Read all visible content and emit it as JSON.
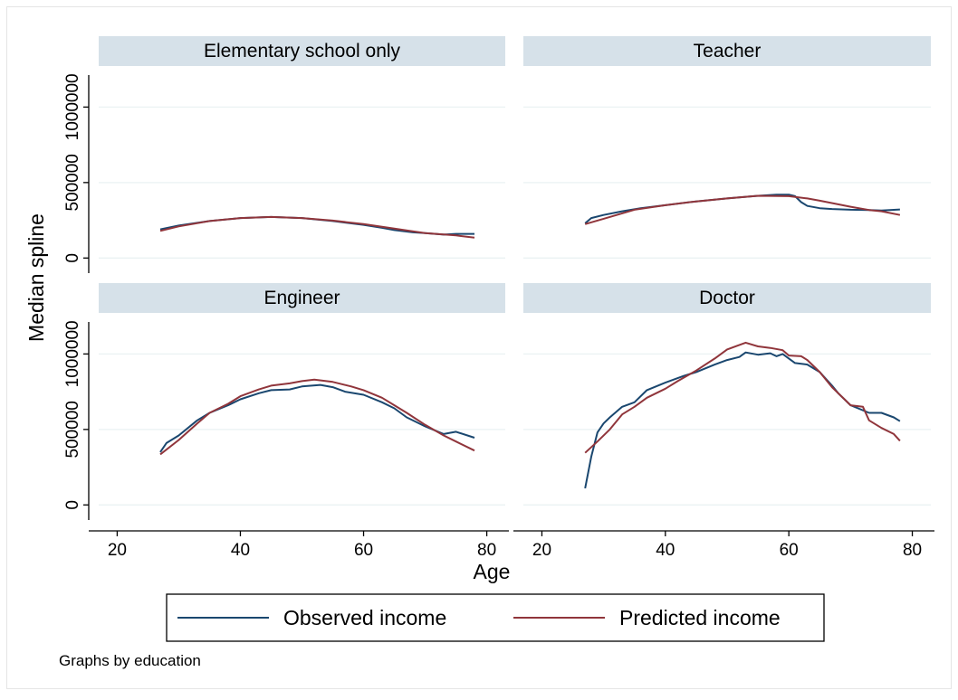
{
  "chart_data": {
    "type": "line",
    "xlabel": "Age",
    "ylabel": "Median spline",
    "note": "Graphs by education",
    "xlim": [
      17,
      83
    ],
    "ylim": [
      -100000,
      1200000
    ],
    "xticks": [
      20,
      40,
      60,
      80
    ],
    "yticks": [
      0,
      500000,
      1000000
    ],
    "grid": true,
    "legend_position": "bottom",
    "colors": {
      "observed": "#1a476f",
      "predicted": "#90353b",
      "panel_header_bg": "#d6e1e9",
      "grid": "#eaf2f3",
      "axis": "#000000",
      "frame_border": "#e5e5e5"
    },
    "legend": [
      {
        "key": "observed",
        "label": "Observed income"
      },
      {
        "key": "predicted",
        "label": "Predicted income"
      }
    ],
    "panels": [
      {
        "title": "Elementary school only",
        "series": [
          {
            "name": "Observed income",
            "key": "observed",
            "x": [
              27,
              30,
              35,
              40,
              45,
              50,
              55,
              60,
              63,
              65,
              68,
              70,
              73,
              75,
              78
            ],
            "y": [
              190000,
              215000,
              245000,
              265000,
              272000,
              265000,
              245000,
              220000,
              200000,
              185000,
              170000,
              165000,
              155000,
              160000,
              160000
            ]
          },
          {
            "name": "Predicted income",
            "key": "predicted",
            "x": [
              27,
              30,
              35,
              40,
              45,
              50,
              55,
              60,
              65,
              70,
              75,
              78
            ],
            "y": [
              180000,
              210000,
              245000,
              265000,
              272000,
              265000,
              248000,
              225000,
              195000,
              165000,
              150000,
              135000
            ]
          }
        ]
      },
      {
        "title": "Teacher",
        "series": [
          {
            "name": "Observed income",
            "key": "observed",
            "x": [
              27,
              28,
              30,
              33,
              36,
              40,
              45,
              50,
              55,
              58,
              60,
              61,
              62,
              63,
              65,
              67,
              70,
              73,
              75,
              78
            ],
            "y": [
              230000,
              265000,
              285000,
              310000,
              330000,
              350000,
              375000,
              395000,
              412000,
              420000,
              420000,
              410000,
              370000,
              345000,
              330000,
              325000,
              320000,
              318000,
              315000,
              322000
            ]
          },
          {
            "name": "Predicted income",
            "key": "predicted",
            "x": [
              27,
              30,
              35,
              40,
              45,
              50,
              55,
              60,
              63,
              65,
              70,
              73,
              75,
              78
            ],
            "y": [
              225000,
              260000,
              320000,
              350000,
              375000,
              395000,
              412000,
              410000,
              395000,
              380000,
              340000,
              318000,
              310000,
              285000
            ]
          }
        ]
      },
      {
        "title": "Engineer",
        "series": [
          {
            "name": "Observed income",
            "key": "observed",
            "x": [
              27,
              28,
              30,
              33,
              35,
              38,
              40,
              43,
              45,
              48,
              50,
              53,
              55,
              57,
              60,
              63,
              65,
              67,
              70,
              73,
              75,
              78
            ],
            "y": [
              350000,
              410000,
              460000,
              560000,
              610000,
              660000,
              700000,
              740000,
              760000,
              765000,
              785000,
              795000,
              780000,
              750000,
              730000,
              680000,
              640000,
              580000,
              520000,
              470000,
              485000,
              445000
            ]
          },
          {
            "name": "Predicted income",
            "key": "predicted",
            "x": [
              27,
              30,
              33,
              35,
              38,
              40,
              43,
              45,
              48,
              50,
              52,
              55,
              58,
              60,
              63,
              65,
              67,
              70,
              73,
              75,
              78
            ],
            "y": [
              335000,
              430000,
              540000,
              610000,
              670000,
              720000,
              765000,
              790000,
              805000,
              820000,
              830000,
              815000,
              785000,
              760000,
              710000,
              660000,
              610000,
              530000,
              460000,
              420000,
              360000
            ]
          }
        ]
      },
      {
        "title": "Doctor",
        "series": [
          {
            "name": "Observed income",
            "key": "observed",
            "x": [
              27,
              28,
              29,
              30,
              31,
              33,
              35,
              37,
              40,
              43,
              45,
              48,
              50,
              52,
              53,
              55,
              57,
              58,
              59,
              60,
              61,
              63,
              65,
              67,
              68,
              70,
              73,
              75,
              77,
              78
            ],
            "y": [
              110000,
              320000,
              480000,
              540000,
              580000,
              650000,
              680000,
              760000,
              810000,
              855000,
              880000,
              930000,
              960000,
              980000,
              1010000,
              995000,
              1005000,
              985000,
              1000000,
              970000,
              940000,
              930000,
              880000,
              790000,
              740000,
              660000,
              610000,
              610000,
              580000,
              555000
            ]
          },
          {
            "name": "Predicted income",
            "key": "predicted",
            "x": [
              27,
              29,
              31,
              33,
              35,
              37,
              40,
              42,
              45,
              48,
              50,
              52,
              53,
              55,
              57,
              59,
              60,
              62,
              63,
              65,
              67,
              70,
              72,
              73,
              75,
              77,
              78
            ],
            "y": [
              345000,
              420000,
              500000,
              600000,
              650000,
              710000,
              770000,
              820000,
              890000,
              970000,
              1030000,
              1060000,
              1075000,
              1050000,
              1040000,
              1025000,
              990000,
              985000,
              960000,
              880000,
              780000,
              660000,
              650000,
              560000,
              510000,
              470000,
              425000
            ]
          }
        ]
      }
    ]
  }
}
